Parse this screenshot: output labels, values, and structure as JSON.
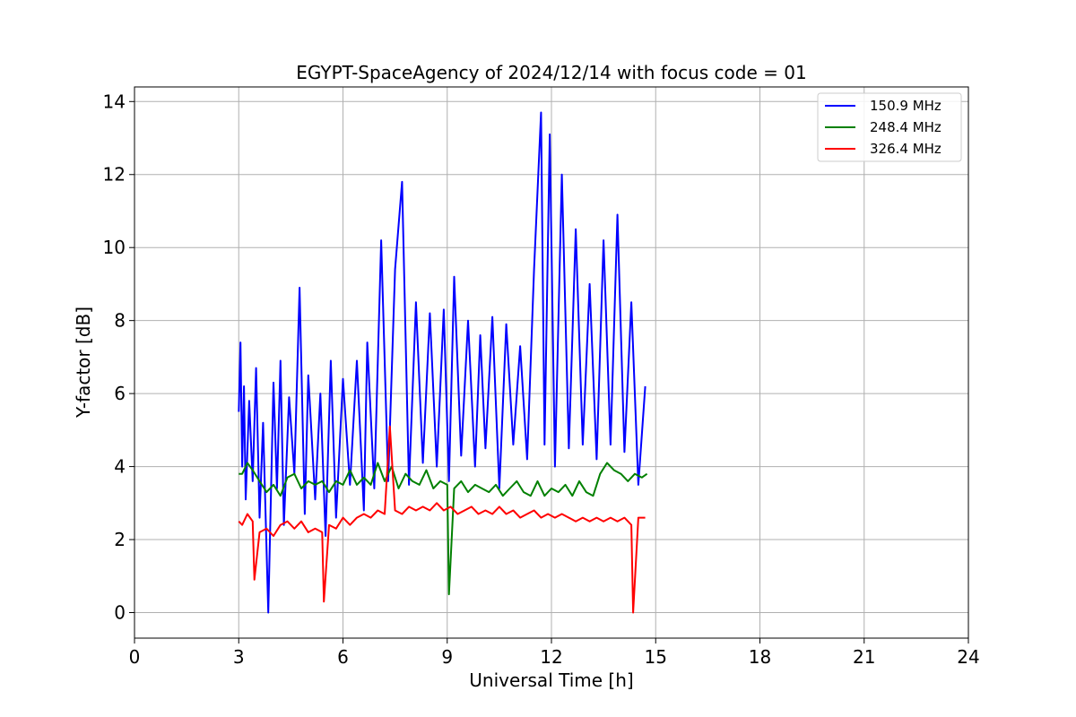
{
  "chart_data": {
    "type": "line",
    "title": "EGYPT-SpaceAgency of 2024/12/14 with focus code = 01",
    "xlabel": "Universal Time [h]",
    "ylabel": "Y-factor [dB]",
    "xlim": [
      0,
      24
    ],
    "ylim": [
      -0.7,
      14.4
    ],
    "xticks": [
      0,
      3,
      6,
      9,
      12,
      15,
      18,
      21,
      24
    ],
    "yticks": [
      0,
      2,
      4,
      6,
      8,
      10,
      12,
      14
    ],
    "grid": true,
    "legend_position": "top-right",
    "series": [
      {
        "name": "150.9 MHz",
        "color": "#0000ff",
        "x": [
          3.0,
          3.05,
          3.1,
          3.15,
          3.2,
          3.3,
          3.4,
          3.5,
          3.6,
          3.7,
          3.85,
          4.0,
          4.1,
          4.2,
          4.3,
          4.45,
          4.6,
          4.75,
          4.9,
          5.0,
          5.2,
          5.35,
          5.5,
          5.65,
          5.8,
          6.0,
          6.2,
          6.4,
          6.6,
          6.7,
          6.9,
          7.1,
          7.3,
          7.5,
          7.7,
          7.9,
          8.1,
          8.3,
          8.5,
          8.7,
          8.9,
          9.05,
          9.2,
          9.4,
          9.6,
          9.8,
          9.95,
          10.1,
          10.3,
          10.5,
          10.7,
          10.9,
          11.1,
          11.3,
          11.5,
          11.7,
          11.8,
          11.95,
          12.1,
          12.3,
          12.5,
          12.7,
          12.9,
          13.1,
          13.3,
          13.5,
          13.7,
          13.9,
          14.1,
          14.3,
          14.5,
          14.7
        ],
        "y": [
          5.5,
          7.4,
          4.0,
          6.2,
          3.1,
          5.8,
          3.6,
          6.7,
          2.6,
          5.2,
          0.0,
          6.3,
          3.4,
          6.9,
          2.4,
          5.9,
          3.8,
          8.9,
          2.7,
          6.5,
          3.1,
          6.0,
          2.1,
          6.9,
          2.6,
          6.4,
          3.5,
          6.9,
          2.8,
          7.4,
          3.4,
          10.2,
          3.6,
          9.4,
          11.8,
          3.5,
          8.5,
          4.1,
          8.2,
          4.0,
          8.3,
          3.6,
          9.2,
          4.3,
          8.0,
          4.0,
          7.6,
          4.5,
          8.1,
          3.4,
          7.9,
          4.6,
          7.3,
          4.2,
          9.4,
          13.7,
          4.6,
          13.1,
          4.0,
          12.0,
          4.5,
          10.5,
          4.6,
          9.0,
          4.2,
          10.2,
          4.6,
          10.9,
          4.4,
          8.5,
          3.5,
          6.2
        ]
      },
      {
        "name": "248.4 MHz",
        "color": "#008000",
        "x": [
          3.0,
          3.1,
          3.25,
          3.4,
          3.6,
          3.8,
          4.0,
          4.2,
          4.4,
          4.6,
          4.8,
          5.0,
          5.2,
          5.4,
          5.6,
          5.8,
          6.0,
          6.2,
          6.4,
          6.6,
          6.8,
          7.0,
          7.2,
          7.4,
          7.6,
          7.8,
          8.0,
          8.2,
          8.4,
          8.6,
          8.8,
          9.0,
          9.05,
          9.2,
          9.4,
          9.6,
          9.8,
          10.0,
          10.2,
          10.4,
          10.6,
          10.8,
          11.0,
          11.2,
          11.4,
          11.6,
          11.8,
          12.0,
          12.2,
          12.4,
          12.6,
          12.8,
          13.0,
          13.2,
          13.4,
          13.6,
          13.8,
          14.0,
          14.2,
          14.4,
          14.6,
          14.75
        ],
        "y": [
          3.8,
          3.8,
          4.1,
          3.9,
          3.6,
          3.3,
          3.5,
          3.2,
          3.7,
          3.8,
          3.4,
          3.6,
          3.5,
          3.6,
          3.3,
          3.6,
          3.5,
          3.9,
          3.5,
          3.7,
          3.5,
          4.1,
          3.6,
          4.0,
          3.4,
          3.8,
          3.6,
          3.5,
          3.9,
          3.4,
          3.6,
          3.5,
          0.5,
          3.4,
          3.6,
          3.3,
          3.5,
          3.4,
          3.3,
          3.5,
          3.2,
          3.4,
          3.6,
          3.3,
          3.2,
          3.6,
          3.2,
          3.4,
          3.3,
          3.5,
          3.2,
          3.6,
          3.3,
          3.2,
          3.8,
          4.1,
          3.9,
          3.8,
          3.6,
          3.8,
          3.7,
          3.8
        ]
      },
      {
        "name": "326.4 MHz",
        "color": "#ff0000",
        "x": [
          3.0,
          3.1,
          3.25,
          3.4,
          3.45,
          3.6,
          3.8,
          4.0,
          4.2,
          4.4,
          4.6,
          4.8,
          5.0,
          5.2,
          5.4,
          5.45,
          5.6,
          5.8,
          6.0,
          6.2,
          6.4,
          6.6,
          6.8,
          7.0,
          7.2,
          7.35,
          7.5,
          7.7,
          7.9,
          8.1,
          8.3,
          8.5,
          8.7,
          8.9,
          9.1,
          9.3,
          9.5,
          9.7,
          9.9,
          10.1,
          10.3,
          10.5,
          10.7,
          10.9,
          11.1,
          11.3,
          11.5,
          11.7,
          11.9,
          12.1,
          12.3,
          12.5,
          12.7,
          12.9,
          13.1,
          13.3,
          13.5,
          13.7,
          13.9,
          14.1,
          14.3,
          14.35,
          14.5,
          14.7
        ],
        "y": [
          2.5,
          2.4,
          2.7,
          2.5,
          0.9,
          2.2,
          2.3,
          2.1,
          2.4,
          2.5,
          2.3,
          2.5,
          2.2,
          2.3,
          2.2,
          0.3,
          2.4,
          2.3,
          2.6,
          2.4,
          2.6,
          2.7,
          2.6,
          2.8,
          2.7,
          5.1,
          2.8,
          2.7,
          2.9,
          2.8,
          2.9,
          2.8,
          3.0,
          2.8,
          2.9,
          2.7,
          2.8,
          2.9,
          2.7,
          2.8,
          2.7,
          2.9,
          2.7,
          2.8,
          2.6,
          2.7,
          2.8,
          2.6,
          2.7,
          2.6,
          2.7,
          2.6,
          2.5,
          2.6,
          2.5,
          2.6,
          2.5,
          2.6,
          2.5,
          2.6,
          2.4,
          0.0,
          2.6,
          2.6
        ]
      }
    ]
  }
}
